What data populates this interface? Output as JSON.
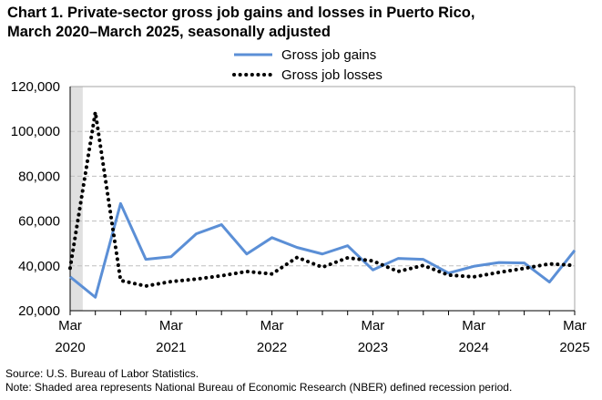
{
  "title_line1": "Chart 1. Private-sector gross job gains and losses in Puerto Rico,",
  "title_line2": "March 2020–March 2025, seasonally adjusted",
  "source": "Source: U.S. Bureau of Labor Statistics.",
  "note": "Note: Shaded area represents National Bureau of Economic Research (NBER) defined recession period.",
  "chart_data": {
    "type": "line",
    "title": "Chart 1. Private-sector gross job gains and losses in Puerto Rico, March 2020–March 2025, seasonally adjusted",
    "xlabel": "",
    "ylabel": "",
    "x": [
      "Mar 2020",
      "Jun 2020",
      "Sep 2020",
      "Dec 2020",
      "Mar 2021",
      "Jun 2021",
      "Sep 2021",
      "Dec 2021",
      "Mar 2022",
      "Jun 2022",
      "Sep 2022",
      "Dec 2022",
      "Mar 2023",
      "Jun 2023",
      "Sep 2023",
      "Dec 2023",
      "Mar 2024",
      "Jun 2024",
      "Sep 2024",
      "Dec 2024",
      "Mar 2025"
    ],
    "x_tick_labels": [
      [
        "Mar",
        "2020"
      ],
      [
        "Mar",
        "2021"
      ],
      [
        "Mar",
        "2022"
      ],
      [
        "Mar",
        "2023"
      ],
      [
        "Mar",
        "2024"
      ],
      [
        "Mar",
        "2025"
      ]
    ],
    "ylim": [
      20000,
      120000
    ],
    "y_ticks": [
      "20,000",
      "40,000",
      "60,000",
      "80,000",
      "100,000",
      "120,000"
    ],
    "grid": "horizontal dashed",
    "legend": "top-center",
    "recession": {
      "start": "Mar 2020",
      "end": "Apr 2020",
      "color": "#e0e0e0"
    },
    "series": [
      {
        "name": "Gross job gains",
        "color": "#5b8fd6",
        "style": "solid",
        "values": [
          35100,
          26000,
          67800,
          42900,
          44100,
          54300,
          58400,
          45300,
          52600,
          48200,
          45300,
          49000,
          38200,
          43300,
          42900,
          36800,
          39800,
          41500,
          41300,
          32800,
          46900
        ]
      },
      {
        "name": "Gross job losses",
        "color": "#000000",
        "style": "dotted",
        "values": [
          39000,
          108600,
          33500,
          31000,
          33000,
          34100,
          35600,
          37500,
          36400,
          43800,
          39400,
          43600,
          42200,
          37500,
          40200,
          35900,
          35100,
          37100,
          38900,
          40900,
          40200
        ]
      }
    ]
  }
}
